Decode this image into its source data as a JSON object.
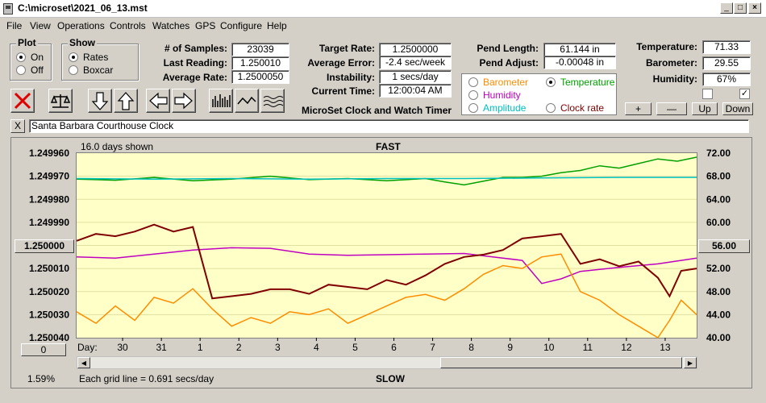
{
  "window": {
    "title": "C:\\microset\\2021_06_13.mst"
  },
  "menu": [
    "File",
    "View",
    "Operations",
    "Controls",
    "Watches",
    "GPS",
    "Configure",
    "Help"
  ],
  "plot_group": {
    "title": "Plot",
    "on": "On",
    "off": "Off",
    "selected": "On"
  },
  "show_group": {
    "title": "Show",
    "rates": "Rates",
    "boxcar": "Boxcar",
    "selected": "Rates"
  },
  "stats": {
    "samples_label": "# of Samples:",
    "samples": "23039",
    "last_label": "Last Reading:",
    "last": "1.250010",
    "avg_label": "Average Rate:",
    "avg": "1.2500050"
  },
  "rate": {
    "target_label": "Target Rate:",
    "target": "1.2500000",
    "error_label": "Average Error:",
    "error": "-2.4 sec/week",
    "instab_label": "Instability:",
    "instab": "1 secs/day",
    "time_label": "Current Time:",
    "time": "12:00:04 AM"
  },
  "app_caption": "MicroSet Clock and Watch Timer",
  "pend": {
    "length_label": "Pend Length:",
    "length": "61.144 in",
    "adjust_label": "Pend Adjust:",
    "adjust": "-0.00048 in"
  },
  "env": {
    "temp_label": "Temperature:",
    "temp": "71.33",
    "baro_label": "Barometer:",
    "baro": "29.55",
    "hum_label": "Humidity:",
    "hum": "67%"
  },
  "series_select": {
    "barometer": "Barometer",
    "temperature": "Temperature",
    "humidity": "Humidity",
    "amplitude": "Amplitude",
    "clockrate": "Clock rate",
    "selected": "Temperature"
  },
  "colors": {
    "barometer": "#ff8c00",
    "temperature": "#00a000",
    "humidity": "#c000c0",
    "amplitude": "#00c0c0",
    "clockrate": "#800000"
  },
  "adjust_buttons": {
    "plus": "+",
    "minus": "—",
    "up": "Up",
    "down": "Down"
  },
  "clock_name": {
    "close": "X",
    "value": "Santa Barbara Courthouse Clock"
  },
  "chart": {
    "days_shown": "16.0 days shown",
    "fast": "FAST",
    "slow": "SLOW",
    "center_left": "1.250000",
    "center_right": "56.00",
    "left_btn": "0",
    "footer_pct": "1.59%",
    "grid_note": "Each grid line = 0.691 secs/day",
    "day_label": "Day:"
  },
  "chart_data": {
    "type": "line",
    "left_axis": [
      "1.249960",
      "1.249970",
      "1.249980",
      "1.249990",
      "1.250000",
      "1.250010",
      "1.250020",
      "1.250030",
      "1.250040"
    ],
    "left_range": [
      1.24996,
      1.25004
    ],
    "right_axis": [
      "72.00",
      "68.00",
      "64.00",
      "60.00",
      "56.00",
      "52.00",
      "48.00",
      "44.00",
      "40.00"
    ],
    "right_range": [
      40,
      72
    ],
    "x_ticks": [
      "30",
      "31",
      "1",
      "2",
      "3",
      "4",
      "5",
      "6",
      "7",
      "8",
      "9",
      "10",
      "11",
      "12",
      "13"
    ],
    "x_range": [
      0,
      16
    ],
    "series": [
      {
        "name": "Temperature",
        "color": "#00a000",
        "axis": "right",
        "x": [
          0,
          1,
          2,
          3,
          4,
          5,
          5.5,
          6,
          7,
          8,
          9,
          9.5,
          10,
          11,
          11.5,
          12,
          12.5,
          13,
          13.5,
          14,
          14.5,
          15,
          15.5,
          16
        ],
        "y": [
          67.5,
          67.3,
          67.8,
          67.2,
          67.5,
          68.0,
          67.7,
          67.4,
          67.6,
          67.2,
          67.6,
          67.0,
          66.5,
          67.8,
          67.8,
          68.0,
          68.6,
          69.0,
          69.8,
          69.4,
          70.2,
          71.0,
          70.6,
          71.3
        ]
      },
      {
        "name": "Amplitude",
        "color": "#00c0c0",
        "axis": "right",
        "x": [
          0,
          2,
          4,
          6,
          8,
          10,
          12,
          14,
          16
        ],
        "y": [
          67.6,
          67.5,
          67.6,
          67.5,
          67.6,
          67.6,
          67.7,
          67.8,
          67.8
        ]
      },
      {
        "name": "Humidity",
        "color": "#c000c0",
        "axis": "right",
        "x": [
          0,
          1,
          2,
          3,
          4,
          5,
          6,
          7,
          8,
          9,
          10,
          11,
          11.5,
          12,
          12.5,
          13,
          14,
          15,
          16
        ],
        "y": [
          54.0,
          53.8,
          54.5,
          55.2,
          55.6,
          55.5,
          54.5,
          54.3,
          54.4,
          54.5,
          54.6,
          53.8,
          53.4,
          49.4,
          50.2,
          51.5,
          52.2,
          52.8,
          53.8
        ]
      },
      {
        "name": "Clock rate",
        "color": "#800000",
        "axis": "left",
        "x": [
          0,
          0.5,
          1,
          1.5,
          2,
          2.5,
          3,
          3.5,
          4,
          4.5,
          5,
          5.5,
          6,
          6.5,
          7,
          7.5,
          8,
          8.5,
          9,
          9.5,
          10,
          10.5,
          11,
          11.5,
          12,
          12.5,
          13,
          13.5,
          14,
          14.5,
          15,
          15.3,
          15.6,
          16
        ],
        "y": [
          1.249998,
          1.249995,
          1.249996,
          1.249994,
          1.249991,
          1.249994,
          1.249992,
          1.250023,
          1.250022,
          1.250021,
          1.250019,
          1.250019,
          1.250021,
          1.250017,
          1.250018,
          1.250019,
          1.250015,
          1.250017,
          1.250013,
          1.250008,
          1.250005,
          1.250004,
          1.250002,
          1.249997,
          1.249996,
          1.249995,
          1.250008,
          1.250006,
          1.250009,
          1.250007,
          1.250014,
          1.250022,
          1.250011,
          1.25001
        ]
      },
      {
        "name": "Barometer",
        "color": "#ff8c00",
        "axis": "right",
        "x": [
          0,
          0.5,
          1,
          1.5,
          2,
          2.5,
          3,
          3.5,
          4,
          4.5,
          5,
          5.5,
          6,
          6.5,
          7,
          7.5,
          8,
          8.5,
          9,
          9.5,
          10,
          10.5,
          11,
          11.5,
          12,
          12.5,
          13,
          13.5,
          14,
          14.5,
          15,
          15.3,
          15.6,
          16
        ],
        "y": [
          44.5,
          42.5,
          45.5,
          43.0,
          47.0,
          46.0,
          48.5,
          45.0,
          42.0,
          43.5,
          42.5,
          44.5,
          44.0,
          45.0,
          42.5,
          44.0,
          45.5,
          47.0,
          47.5,
          46.5,
          48.5,
          51.0,
          52.5,
          52.0,
          54.0,
          54.5,
          48.0,
          46.5,
          44.0,
          42.0,
          40.0,
          43.0,
          46.5,
          44.0
        ]
      }
    ]
  }
}
